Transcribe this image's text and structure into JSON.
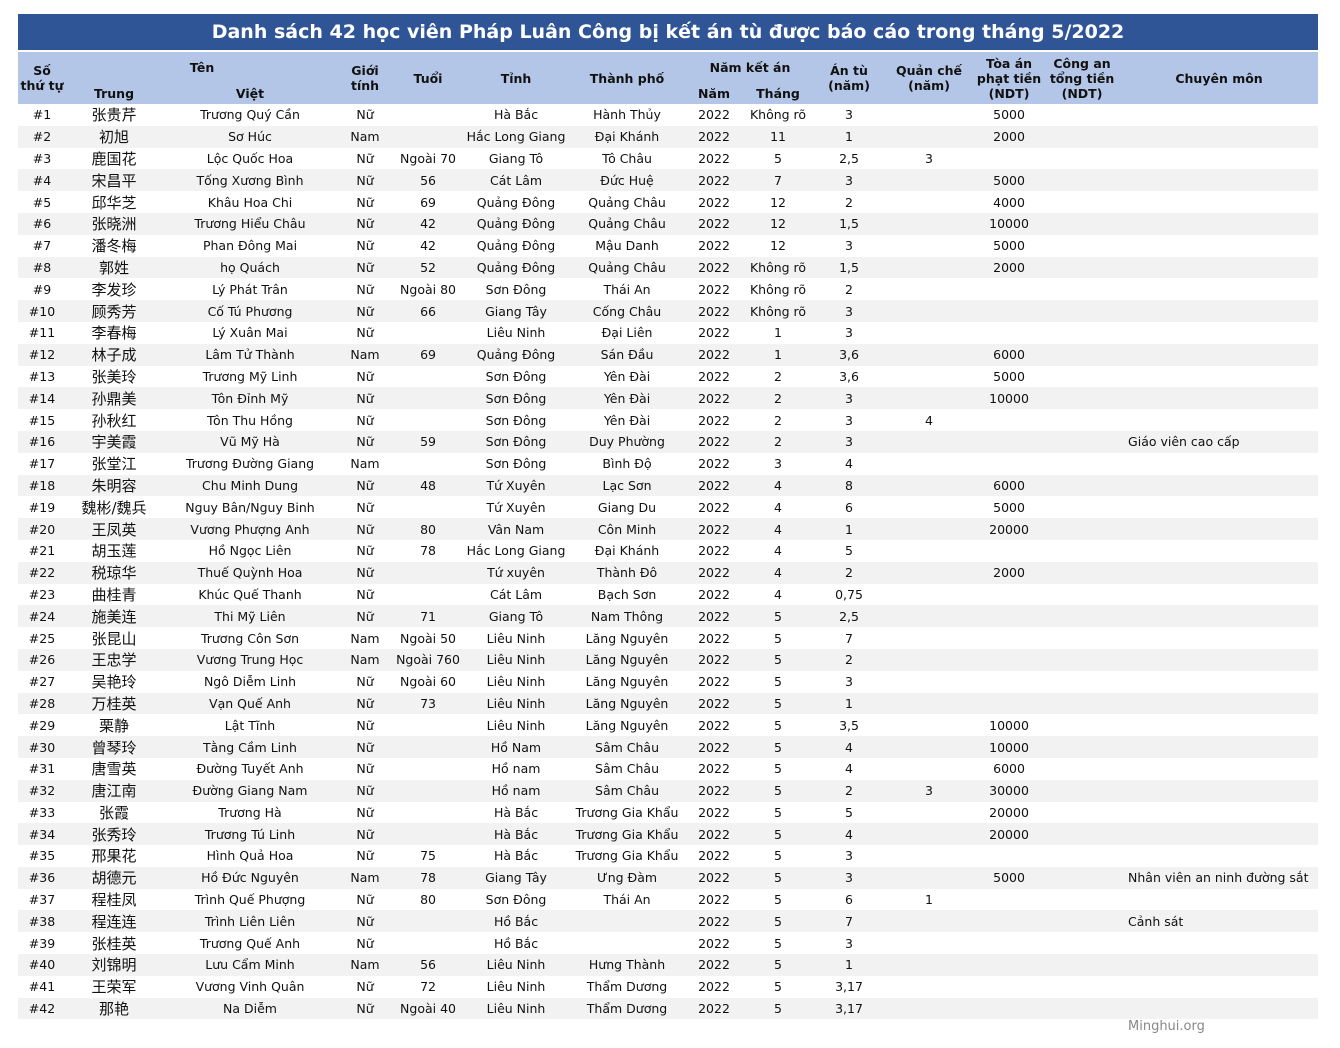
{
  "title": "Danh sách 42 học viên Pháp Luân Công bị kết án tù được báo cáo trong tháng 5/2022",
  "header": {
    "no": "Số thứ tự",
    "name": "Tên",
    "chinese": "Trung",
    "vietnamese": "Việt",
    "gender": "Giới tính",
    "age": "Tuổi",
    "province": "Tỉnh",
    "city": "Thành phố",
    "sentenced": "Năm kết án",
    "year": "Năm",
    "month": "Tháng",
    "prison": "Án tù (năm)",
    "probation": "Quản chế (năm)",
    "court_fine": "Tòa án phạt tiền (NDT)",
    "police_fine": "Công an tổng tiền (NDT)",
    "profession": "Chuyên môn"
  },
  "table": {
    "rows": [
      [
        "#1",
        "张贵芹",
        "Trương Quý Cần",
        "Nữ",
        null,
        "Hà Bắc",
        "Hành Thủy",
        "2022",
        "Không rõ",
        "3",
        null,
        "5000",
        null,
        null
      ],
      [
        "#2",
        "初旭",
        "Sơ Húc",
        "Nam",
        null,
        "Hắc Long Giang",
        "Đại Khánh",
        "2022",
        "11",
        "1",
        null,
        "2000",
        null,
        null
      ],
      [
        "#3",
        "鹿国花",
        "Lộc Quốc Hoa",
        "Nữ",
        "Ngoài 70",
        "Giang Tô",
        "Tô Châu",
        "2022",
        "5",
        "2,5",
        "3",
        null,
        null,
        null
      ],
      [
        "#4",
        "宋昌平",
        "Tống Xương Bình",
        "Nữ",
        "56",
        "Cát Lâm",
        "Đức Huệ",
        "2022",
        "7",
        "3",
        null,
        "5000",
        null,
        null
      ],
      [
        "#5",
        "邱华芝",
        "Khâu Hoa Chi",
        "Nữ",
        "69",
        "Quảng Đông",
        "Quảng Châu",
        "2022",
        "12",
        "2",
        null,
        "4000",
        null,
        null
      ],
      [
        "#6",
        "张晓洲",
        "Trương Hiểu Châu",
        "Nữ",
        "42",
        "Quảng Đông",
        "Quảng Châu",
        "2022",
        "12",
        "1,5",
        null,
        "10000",
        null,
        null
      ],
      [
        "#7",
        "潘冬梅",
        "Phan Đông Mai",
        "Nữ",
        "42",
        "Quảng Đông",
        "Mậu Danh",
        "2022",
        "12",
        "3",
        null,
        "5000",
        null,
        null
      ],
      [
        "#8",
        "郭姓",
        "họ Quách",
        "Nữ",
        "52",
        "Quảng Đông",
        "Quảng Châu",
        "2022",
        "Không rõ",
        "1,5",
        null,
        "2000",
        null,
        null
      ],
      [
        "#9",
        "李发珍",
        "Lý Phát Trân",
        "Nữ",
        "Ngoài 80",
        "Sơn Đông",
        "Thái An",
        "2022",
        "Không rõ",
        "2",
        null,
        null,
        null,
        null
      ],
      [
        "#10",
        "顾秀芳",
        "Cố Tú Phương",
        "Nữ",
        "66",
        "Giang Tây",
        "Cống Châu",
        "2022",
        "Không rõ",
        "3",
        null,
        null,
        null,
        null
      ],
      [
        "#11",
        "李春梅",
        "Lý Xuân Mai",
        "Nữ",
        null,
        "Liêu Ninh",
        "Đại Liên",
        "2022",
        "1",
        "3",
        null,
        null,
        null,
        null
      ],
      [
        "#12",
        "林子成",
        "Lâm Tử Thành",
        "Nam",
        "69",
        "Quảng Đông",
        "Sán Đầu",
        "2022",
        "1",
        "3,6",
        null,
        "6000",
        null,
        null
      ],
      [
        "#13",
        "张美玲",
        "Trương Mỹ Linh",
        "Nữ",
        null,
        "Sơn Đông",
        "Yên Đài",
        "2022",
        "2",
        "3,6",
        null,
        "5000",
        null,
        null
      ],
      [
        "#14",
        "孙鼎美",
        "Tôn Đỉnh Mỹ",
        "Nữ",
        null,
        "Sơn Đông",
        "Yên Đài",
        "2022",
        "2",
        "3",
        null,
        "10000",
        null,
        null
      ],
      [
        "#15",
        "孙秋红",
        "Tôn Thu Hồng",
        "Nữ",
        null,
        "Sơn Đông",
        "Yên Đài",
        "2022",
        "2",
        "3",
        "4",
        null,
        null,
        null
      ],
      [
        "#16",
        "宇美霞",
        "Vũ Mỹ Hà",
        "Nữ",
        "59",
        "Sơn Đông",
        "Duy Phường",
        "2022",
        "2",
        "3",
        null,
        null,
        null,
        "Giáo viên cao cấp"
      ],
      [
        "#17",
        "张堂江",
        "Trương Đường Giang",
        "Nam",
        null,
        "Sơn Đông",
        "Bình Độ",
        "2022",
        "3",
        "4",
        null,
        null,
        null,
        null
      ],
      [
        "#18",
        "朱明容",
        "Chu Minh Dung",
        "Nữ",
        "48",
        "Tứ Xuyên",
        "Lạc Sơn",
        "2022",
        "4",
        "8",
        null,
        "6000",
        null,
        null
      ],
      [
        "#19",
        "魏彬/魏兵",
        "Nguy Bân/Nguy Binh",
        "Nữ",
        null,
        "Tứ Xuyên",
        "Giang Du",
        "2022",
        "4",
        "6",
        null,
        "5000",
        null,
        null
      ],
      [
        "#20",
        "王凤英",
        "Vương Phượng Anh",
        "Nữ",
        "80",
        "Vân Nam",
        "Côn Minh",
        "2022",
        "4",
        "1",
        null,
        "20000",
        null,
        null
      ],
      [
        "#21",
        "胡玉莲",
        "Hồ Ngọc Liên",
        "Nữ",
        "78",
        "Hắc Long Giang",
        "Đại Khánh",
        "2022",
        "4",
        "5",
        null,
        null,
        null,
        null
      ],
      [
        "#22",
        "税琼华",
        "Thuế Quỳnh Hoa",
        "Nữ",
        null,
        "Tứ xuyên",
        "Thành Đô",
        "2022",
        "4",
        "2",
        null,
        "2000",
        null,
        null
      ],
      [
        "#23",
        "曲桂青",
        "Khúc Quế Thanh",
        "Nữ",
        null,
        "Cát Lâm",
        "Bạch Sơn",
        "2022",
        "4",
        "0,75",
        null,
        null,
        null,
        null
      ],
      [
        "#24",
        "施美连",
        "Thi Mỹ Liên",
        "Nữ",
        "71",
        "Giang Tô",
        "Nam Thông",
        "2022",
        "5",
        "2,5",
        null,
        null,
        null,
        null
      ],
      [
        "#25",
        "张昆山",
        "Trương Côn Sơn",
        "Nam",
        "Ngoài 50",
        "Liêu Ninh",
        "Lăng Nguyên",
        "2022",
        "5",
        "7",
        null,
        null,
        null,
        null
      ],
      [
        "#26",
        "王忠学",
        "Vương Trung Học",
        "Nam",
        "Ngoài 760",
        "Liêu Ninh",
        "Lăng Nguyên",
        "2022",
        "5",
        "2",
        null,
        null,
        null,
        null
      ],
      [
        "#27",
        "吴艳玲",
        "Ngô Diễm Linh",
        "Nữ",
        "Ngoài 60",
        "Liêu Ninh",
        "Lăng Nguyên",
        "2022",
        "5",
        "3",
        null,
        null,
        null,
        null
      ],
      [
        "#28",
        "万桂英",
        "Vạn Quế Anh",
        "Nữ",
        "73",
        "Liêu Ninh",
        "Lăng Nguyên",
        "2022",
        "5",
        "1",
        null,
        null,
        null,
        null
      ],
      [
        "#29",
        "栗静",
        "Lật Tĩnh",
        "Nữ",
        null,
        "Liêu Ninh",
        "Lăng Nguyên",
        "2022",
        "5",
        "3,5",
        null,
        "10000",
        null,
        null
      ],
      [
        "#30",
        "曾琴玲",
        "Tằng Cầm Linh",
        "Nữ",
        null,
        "Hồ Nam",
        "Sâm Châu",
        "2022",
        "5",
        "4",
        null,
        "10000",
        null,
        null
      ],
      [
        "#31",
        "唐雪英",
        "Đường Tuyết Anh",
        "Nữ",
        null,
        "Hồ nam",
        "Sâm Châu",
        "2022",
        "5",
        "4",
        null,
        "6000",
        null,
        null
      ],
      [
        "#32",
        "唐江南",
        "Đường Giang Nam",
        "Nữ",
        null,
        "Hồ nam",
        "Sâm Châu",
        "2022",
        "5",
        "2",
        "3",
        "30000",
        null,
        null
      ],
      [
        "#33",
        "张霞",
        "Trương Hà",
        "Nữ",
        null,
        "Hà Bắc",
        "Trương Gia Khẩu",
        "2022",
        "5",
        "5",
        null,
        "20000",
        null,
        null
      ],
      [
        "#34",
        "张秀玲",
        "Trương Tú Linh",
        "Nữ",
        null,
        "Hà Bắc",
        "Trương Gia Khẩu",
        "2022",
        "5",
        "4",
        null,
        "20000",
        null,
        null
      ],
      [
        "#35",
        "邢果花",
        "Hình Quả Hoa",
        "Nữ",
        "75",
        "Hà Bắc",
        "Trương Gia Khẩu",
        "2022",
        "5",
        "3",
        null,
        null,
        null,
        null
      ],
      [
        "#36",
        "胡德元",
        "Hồ Đức Nguyên",
        "Nam",
        "78",
        "Giang Tây",
        "Ưng Đàm",
        "2022",
        "5",
        "3",
        null,
        "5000",
        null,
        "Nhân viên an ninh đường sắt"
      ],
      [
        "#37",
        "程桂凤",
        "Trình Quế Phượng",
        "Nữ",
        "80",
        "Sơn Đông",
        "Thái An",
        "2022",
        "5",
        "6",
        "1",
        null,
        null,
        null
      ],
      [
        "#38",
        "程连连",
        "Trình Liên Liên",
        "Nữ",
        null,
        "Hồ Bắc",
        null,
        "2022",
        "5",
        "7",
        null,
        null,
        null,
        "Cảnh sát"
      ],
      [
        "#39",
        "张桂英",
        "Trương Quế Anh",
        "Nữ",
        null,
        "Hồ Bắc",
        null,
        "2022",
        "5",
        "3",
        null,
        null,
        null,
        null
      ],
      [
        "#40",
        "刘锦明",
        "Lưu Cẩm Minh",
        "Nam",
        "56",
        "Liêu Ninh",
        "Hưng Thành",
        "2022",
        "5",
        "1",
        null,
        null,
        null,
        null
      ],
      [
        "#41",
        "王荣军",
        "Vương Vinh Quân",
        "Nữ",
        "72",
        "Liêu Ninh",
        "Thẩm Dương",
        "2022",
        "5",
        "3,17",
        null,
        null,
        null,
        null
      ],
      [
        "#42",
        "那艳",
        "Na Diễm",
        "Nữ",
        "Ngoài 40",
        "Liêu Ninh",
        "Thẩm Dương",
        "2022",
        "5",
        "3,17",
        null,
        null,
        null,
        null
      ]
    ]
  },
  "footer": {
    "source": "Minghui.org"
  }
}
